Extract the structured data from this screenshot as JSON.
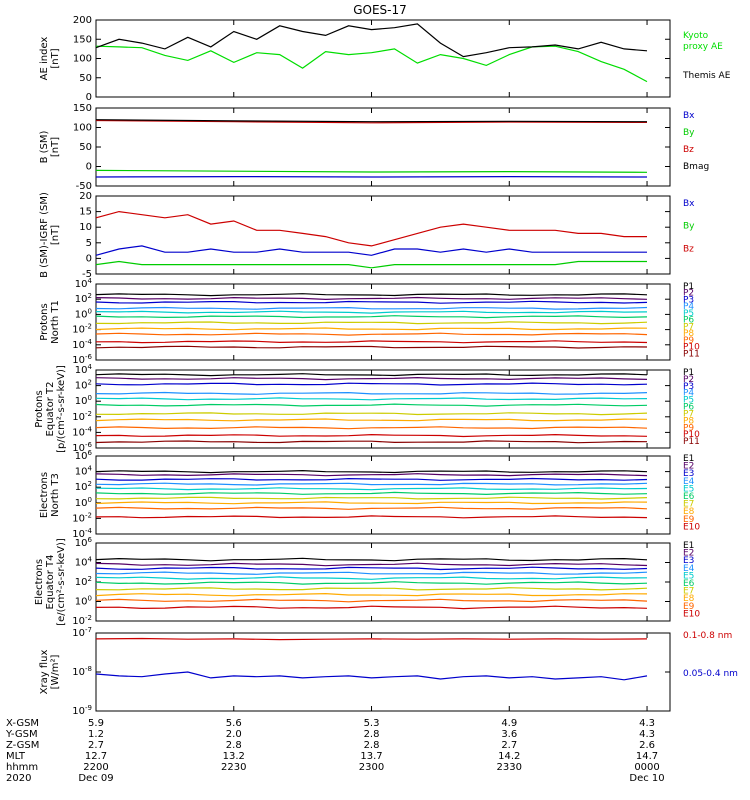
{
  "title": "GOES-17",
  "chart_data": [
    {
      "type": "line",
      "panel": "ae",
      "ylabel": [
        "AE index",
        "[nT]"
      ],
      "yscale": "linear",
      "ylim": [
        0,
        200
      ],
      "yticks": [
        0,
        50,
        100,
        150,
        200
      ],
      "ytick_labels": [
        "0",
        "50",
        "100",
        "150",
        "200"
      ],
      "legend_placement": "right",
      "series": [
        {
          "name": "Kyoto\nproxy AE",
          "color": "#00dd00",
          "x": [
            0,
            5,
            10,
            15,
            20,
            25,
            30,
            35,
            40,
            45,
            50,
            55,
            60,
            65,
            70,
            75,
            80,
            85,
            90,
            95,
            100,
            105,
            110,
            115,
            120
          ],
          "y": [
            132,
            130,
            128,
            108,
            95,
            120,
            90,
            115,
            110,
            75,
            118,
            110,
            115,
            125,
            88,
            110,
            100,
            82,
            110,
            130,
            132,
            118,
            92,
            72,
            40
          ]
        },
        {
          "name": "Themis AE",
          "color": "#000000",
          "x": [
            0,
            5,
            10,
            15,
            20,
            25,
            30,
            35,
            40,
            45,
            50,
            55,
            60,
            65,
            70,
            75,
            80,
            85,
            90,
            95,
            100,
            105,
            110,
            115,
            120
          ],
          "y": [
            128,
            150,
            140,
            125,
            155,
            130,
            170,
            150,
            185,
            170,
            160,
            185,
            175,
            180,
            190,
            140,
            105,
            115,
            128,
            130,
            135,
            125,
            142,
            125,
            120
          ]
        }
      ]
    },
    {
      "type": "line",
      "panel": "bsm",
      "ylabel": [
        "B (SM)",
        "[nT]"
      ],
      "yscale": "linear",
      "ylim": [
        -50,
        150
      ],
      "yticks": [
        -50,
        0,
        50,
        100,
        150
      ],
      "ytick_labels": [
        "-50",
        "0",
        "50",
        "100",
        "150"
      ],
      "series": [
        {
          "name": "Bx",
          "color": "#0000cc",
          "x": [
            0,
            30,
            60,
            90,
            120
          ],
          "y": [
            -27,
            -26,
            -27,
            -26,
            -27
          ]
        },
        {
          "name": "By",
          "color": "#00cc00",
          "x": [
            0,
            30,
            60,
            90,
            120
          ],
          "y": [
            -10,
            -12,
            -14,
            -13,
            -15
          ]
        },
        {
          "name": "Bz",
          "color": "#cc0000",
          "x": [
            0,
            30,
            60,
            90,
            120
          ],
          "y": [
            118,
            115,
            112,
            114,
            113
          ]
        },
        {
          "name": "Bmag",
          "color": "#000000",
          "x": [
            0,
            30,
            60,
            90,
            120
          ],
          "y": [
            120,
            117,
            115,
            116,
            115
          ]
        }
      ]
    },
    {
      "type": "line",
      "panel": "bdiff",
      "ylabel": [
        "B (SM)-IGRF (SM)",
        "[nT]"
      ],
      "yscale": "linear",
      "ylim": [
        -5,
        20
      ],
      "yticks": [
        -5,
        0,
        5,
        10,
        15,
        20
      ],
      "ytick_labels": [
        "-5",
        "0",
        "5",
        "10",
        "15",
        "20"
      ],
      "series": [
        {
          "name": "Bx",
          "color": "#0000cc",
          "x": [
            0,
            5,
            10,
            15,
            20,
            25,
            30,
            35,
            40,
            45,
            50,
            55,
            60,
            65,
            70,
            75,
            80,
            85,
            90,
            95,
            100,
            105,
            110,
            115,
            120
          ],
          "y": [
            1,
            3,
            4,
            2,
            2,
            3,
            2,
            2,
            3,
            2,
            2,
            2,
            1,
            3,
            3,
            2,
            3,
            2,
            3,
            2,
            2,
            2,
            2,
            2,
            2
          ]
        },
        {
          "name": "By",
          "color": "#00cc00",
          "x": [
            0,
            5,
            10,
            15,
            20,
            25,
            30,
            35,
            40,
            45,
            50,
            55,
            60,
            65,
            70,
            75,
            80,
            85,
            90,
            95,
            100,
            105,
            110,
            115,
            120
          ],
          "y": [
            -2,
            -1,
            -2,
            -2,
            -2,
            -2,
            -2,
            -2,
            -2,
            -2,
            -2,
            -2,
            -3,
            -2,
            -2,
            -2,
            -2,
            -2,
            -2,
            -2,
            -2,
            -1,
            -1,
            -1,
            -1
          ]
        },
        {
          "name": "Bz",
          "color": "#cc0000",
          "x": [
            0,
            5,
            10,
            15,
            20,
            25,
            30,
            35,
            40,
            45,
            50,
            55,
            60,
            65,
            70,
            75,
            80,
            85,
            90,
            95,
            100,
            105,
            110,
            115,
            120
          ],
          "y": [
            13,
            15,
            14,
            13,
            14,
            11,
            12,
            9,
            9,
            8,
            7,
            5,
            4,
            6,
            8,
            10,
            11,
            10,
            9,
            9,
            9,
            8,
            8,
            7,
            7
          ]
        }
      ]
    },
    {
      "type": "line",
      "panel": "protons_t1",
      "ylabel": [
        "Protons",
        "North T1"
      ],
      "yscale": "log",
      "ylim": [
        -6,
        4
      ],
      "yticks": [
        4,
        2,
        0,
        -2,
        -4,
        -6
      ],
      "ytick_labels": [
        "10^4",
        "10^2",
        "10^0",
        "10^-2",
        "10^-4",
        "10^-6"
      ],
      "series": [
        {
          "name": "P1",
          "color": "#000000",
          "y": 2.6
        },
        {
          "name": "P2",
          "color": "#550066",
          "y": 2.1
        },
        {
          "name": "P3",
          "color": "#0000cc",
          "y": 1.6
        },
        {
          "name": "P4",
          "color": "#1e90ff",
          "y": 0.8
        },
        {
          "name": "P5",
          "color": "#00cccc",
          "y": 0.3
        },
        {
          "name": "P6",
          "color": "#00cc66",
          "y": -0.3
        },
        {
          "name": "P7",
          "color": "#cccc00",
          "y": -1.1
        },
        {
          "name": "P8",
          "color": "#ffaa00",
          "y": -1.9
        },
        {
          "name": "P9",
          "color": "#ff6600",
          "y": -2.6
        },
        {
          "name": "P10",
          "color": "#cc0000",
          "y": -3.6
        },
        {
          "name": "P11",
          "color": "#880000",
          "y": -4.3
        }
      ]
    },
    {
      "type": "line",
      "panel": "protons_t2",
      "ylabel": [
        "Protons",
        "Equator T2",
        "[p/(cm²-s-sr-keV)]"
      ],
      "yscale": "log",
      "ylim": [
        -6,
        4
      ],
      "yticks": [
        4,
        2,
        0,
        -2,
        -4,
        -6
      ],
      "ytick_labels": [
        "10^4",
        "10^2",
        "10^0",
        "10^-2",
        "10^-4",
        "10^-6"
      ],
      "series": [
        {
          "name": "P1",
          "color": "#000000",
          "y": 3.4
        },
        {
          "name": "P2",
          "color": "#550066",
          "y": 2.9
        },
        {
          "name": "P3",
          "color": "#0000cc",
          "y": 2.2
        },
        {
          "name": "P4",
          "color": "#1e90ff",
          "y": 1.0
        },
        {
          "name": "P5",
          "color": "#00cccc",
          "y": 0.3
        },
        {
          "name": "P6",
          "color": "#00cc66",
          "y": -0.5
        },
        {
          "name": "P7",
          "color": "#cccc00",
          "y": -1.6
        },
        {
          "name": "P8",
          "color": "#ffaa00",
          "y": -2.4
        },
        {
          "name": "P9",
          "color": "#ff6600",
          "y": -3.4
        },
        {
          "name": "P10",
          "color": "#cc0000",
          "y": -4.4
        },
        {
          "name": "P11",
          "color": "#880000",
          "y": -5.2
        }
      ]
    },
    {
      "type": "line",
      "panel": "electrons_t3",
      "ylabel": [
        "Electrons",
        "North T3"
      ],
      "yscale": "log",
      "ylim": [
        -4,
        6
      ],
      "yticks": [
        6,
        4,
        2,
        0,
        -2,
        -4
      ],
      "ytick_labels": [
        "10^6",
        "10^4",
        "10^2",
        "10^0",
        "10^-2",
        "10^-4"
      ],
      "series": [
        {
          "name": "E1",
          "color": "#000000",
          "y": 4.0
        },
        {
          "name": "E2",
          "color": "#550066",
          "y": 3.6
        },
        {
          "name": "E3",
          "color": "#0000cc",
          "y": 3.0
        },
        {
          "name": "E4",
          "color": "#1e90ff",
          "y": 2.4
        },
        {
          "name": "E5",
          "color": "#00cccc",
          "y": 1.8
        },
        {
          "name": "E6",
          "color": "#00cc66",
          "y": 1.2
        },
        {
          "name": "E7",
          "color": "#cccc00",
          "y": 0.6
        },
        {
          "name": "E8",
          "color": "#ffaa00",
          "y": 0.0
        },
        {
          "name": "E9",
          "color": "#ff6600",
          "y": -0.7
        },
        {
          "name": "E10",
          "color": "#cc0000",
          "y": -1.8
        }
      ]
    },
    {
      "type": "line",
      "panel": "electrons_t4",
      "ylabel": [
        "Electrons",
        "Equator T4",
        "[e/(cm²-s-sr-keV)]"
      ],
      "yscale": "log",
      "ylim": [
        -2,
        6
      ],
      "yticks": [
        6,
        4,
        2,
        0,
        -2
      ],
      "ytick_labels": [
        "10^6",
        "10^4",
        "10^2",
        "10^0",
        "10^-2"
      ],
      "series": [
        {
          "name": "E1",
          "color": "#000000",
          "y": 4.3
        },
        {
          "name": "E2",
          "color": "#550066",
          "y": 3.8
        },
        {
          "name": "E3",
          "color": "#0000cc",
          "y": 3.4
        },
        {
          "name": "E4",
          "color": "#1e90ff",
          "y": 2.9
        },
        {
          "name": "E5",
          "color": "#00cccc",
          "y": 2.4
        },
        {
          "name": "E6",
          "color": "#00cc66",
          "y": 1.9
        },
        {
          "name": "E7",
          "color": "#cccc00",
          "y": 1.3
        },
        {
          "name": "E8",
          "color": "#ffaa00",
          "y": 0.7
        },
        {
          "name": "E9",
          "color": "#ff6600",
          "y": 0.1
        },
        {
          "name": "E10",
          "color": "#cc0000",
          "y": -0.6
        }
      ]
    },
    {
      "type": "line",
      "panel": "xray",
      "ylabel": [
        "Xray flux",
        "[W/m²]"
      ],
      "yscale": "log",
      "ylim": [
        -9,
        -7
      ],
      "yticks": [
        -7,
        -8,
        -9
      ],
      "ytick_labels": [
        "10^-7",
        "10^-8",
        "10^-9"
      ],
      "series": [
        {
          "name": "0.1-0.8 nm",
          "color": "#cc0000",
          "x": [
            0,
            10,
            20,
            30,
            40,
            50,
            60,
            70,
            80,
            90,
            100,
            110,
            120
          ],
          "y": [
            -7.15,
            -7.14,
            -7.16,
            -7.15,
            -7.17,
            -7.16,
            -7.15,
            -7.16,
            -7.15,
            -7.16,
            -7.15,
            -7.16,
            -7.15
          ]
        },
        {
          "name": "0.05-0.4 nm",
          "color": "#0000cc",
          "x": [
            0,
            5,
            10,
            15,
            20,
            25,
            30,
            35,
            40,
            45,
            50,
            55,
            60,
            65,
            70,
            75,
            80,
            85,
            90,
            95,
            100,
            105,
            110,
            115,
            120
          ],
          "y": [
            -8.05,
            -8.1,
            -8.12,
            -8.05,
            -8.0,
            -8.15,
            -8.1,
            -8.12,
            -8.1,
            -8.15,
            -8.12,
            -8.1,
            -8.15,
            -8.12,
            -8.1,
            -8.18,
            -8.12,
            -8.1,
            -8.15,
            -8.12,
            -8.18,
            -8.15,
            -8.12,
            -8.2,
            -8.1
          ]
        }
      ]
    }
  ],
  "xlim": [
    0,
    125
  ],
  "x_ticks": [
    0,
    30,
    60,
    90,
    120
  ],
  "ephemeris": {
    "labels": [
      "X-GSM",
      "Y-GSM",
      "Z-GSM",
      "MLT",
      "hhmm",
      "2020"
    ],
    "columns": [
      [
        "5.9",
        "1.2",
        "2.7",
        "12.7",
        "2200",
        "Dec 09"
      ],
      [
        "5.6",
        "2.0",
        "2.8",
        "13.2",
        "2230",
        ""
      ],
      [
        "5.3",
        "2.8",
        "2.8",
        "13.7",
        "2300",
        ""
      ],
      [
        "4.9",
        "3.6",
        "2.7",
        "14.2",
        "2330",
        ""
      ],
      [
        "4.3",
        "4.3",
        "2.6",
        "14.7",
        "0000",
        "Dec 10"
      ]
    ]
  }
}
